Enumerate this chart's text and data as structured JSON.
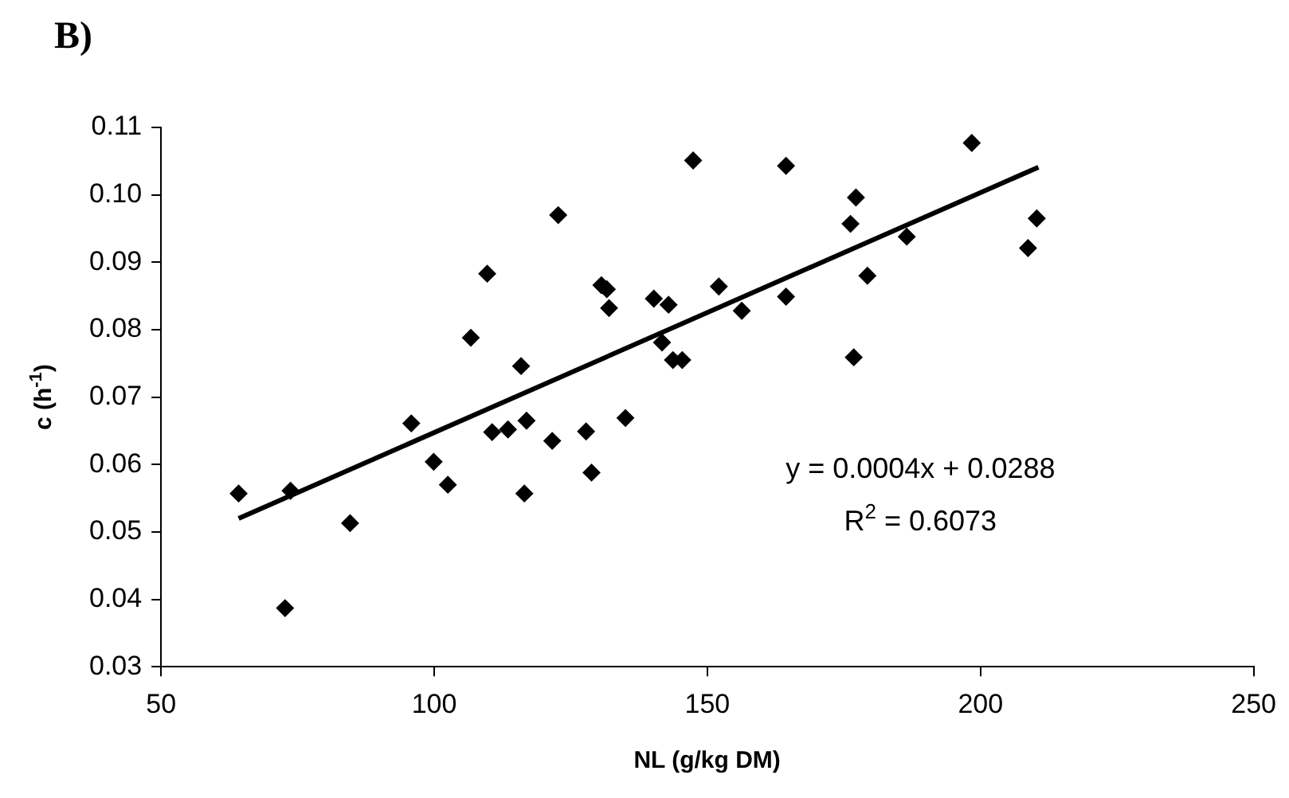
{
  "chart_data": {
    "type": "scatter",
    "title": "B)",
    "xlabel": "NL (g/kg DM)",
    "ylabel": "c (h$^{-1}$)",
    "xlim": [
      50,
      250
    ],
    "xticks": [
      50,
      100,
      150,
      200,
      250
    ],
    "ylim": [
      0.03,
      0.11
    ],
    "yticks": [
      0.03,
      0.04,
      0.05,
      0.06,
      0.07,
      0.08,
      0.09,
      {
        "value": 0.1,
        "label": "0.10"
      },
      0.11
    ],
    "grid": false,
    "legend": false,
    "annotations": [
      "y = 0.0004x + 0.0288",
      "R$^{2}$ = 0.6073"
    ],
    "series": [
      {
        "color": "#000000",
        "marker": "diamond",
        "x": [
          64.2,
          73.7,
          72.7,
          84.6,
          95.8,
          99.9,
          102.5,
          106.7,
          109.7,
          110.6,
          113.5,
          115.9,
          116.9,
          116.5,
          121.6,
          122.7,
          130.6,
          131.6,
          132.0,
          127.8,
          128.8,
          135.0,
          140.2,
          142.9,
          141.7,
          143.7,
          145.4,
          147.4,
          152.1,
          156.3,
          164.4,
          164.4,
          177.2,
          176.2,
          179.3,
          176.8,
          198.4,
          186.5,
          210.3,
          208.7
        ],
        "values": [
          0.0557,
          0.0561,
          0.0387,
          0.0513,
          0.0661,
          0.0604,
          0.057,
          0.0788,
          0.0883,
          0.0648,
          0.0652,
          0.0746,
          0.0665,
          0.0557,
          0.0635,
          0.097,
          0.0866,
          0.086,
          0.0832,
          0.0649,
          0.0588,
          0.0669,
          0.0846,
          0.0837,
          0.0781,
          0.0755,
          0.0755,
          0.1051,
          0.0864,
          0.0828,
          0.1043,
          0.0849,
          0.0996,
          0.0957,
          0.088,
          0.0759,
          0.1077,
          0.0938,
          0.0965,
          0.0921
        ]
      },
      {
        "type": "line",
        "marker": "none",
        "color": "#000000",
        "x": [
          64.2,
          210.6
        ],
        "values": [
          0.052,
          0.1041
        ]
      }
    ]
  }
}
